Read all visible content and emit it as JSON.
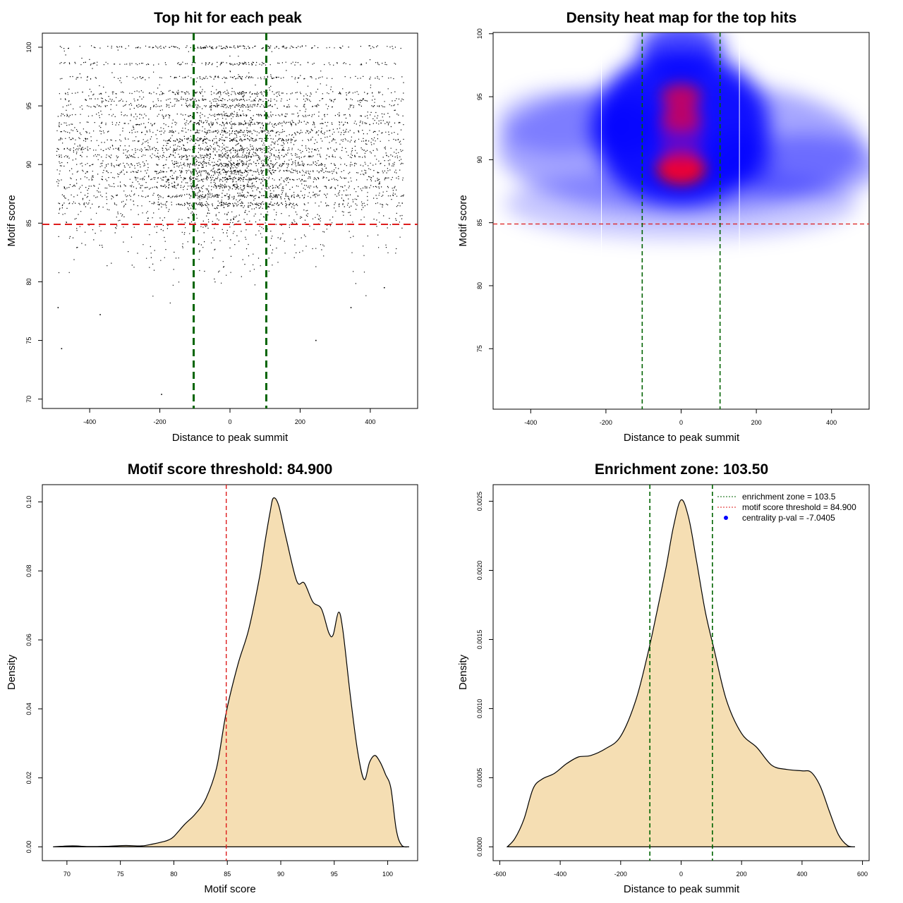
{
  "chart_data": [
    {
      "id": "scatter",
      "type": "scatter",
      "title": "Top hit for each peak",
      "xlabel": "Distance to peak summit",
      "ylabel": "Motif score",
      "xlim": [
        -535,
        535
      ],
      "ylim": [
        69.2,
        101.2
      ],
      "xticks": [
        -400,
        -200,
        0,
        200,
        400
      ],
      "yticks": [
        70,
        75,
        80,
        85,
        90,
        95,
        100
      ],
      "threshold": 84.9,
      "zone": [
        -103.5,
        103.5
      ],
      "points_note_series": [
        {
          "x": -480,
          "y": 74.3
        },
        {
          "x": -490,
          "y": 77.8
        },
        {
          "x": -370,
          "y": 77.2
        },
        {
          "x": -195,
          "y": 70.4
        },
        {
          "x": 245,
          "y": 75.0
        },
        {
          "x": 345,
          "y": 77.8
        },
        {
          "x": 440,
          "y": 79.5
        },
        {
          "x": 0,
          "y": 100
        },
        {
          "x": 0,
          "y": 98.6
        },
        {
          "x": 0,
          "y": 95
        },
        {
          "x": 0,
          "y": 92
        },
        {
          "x": 0,
          "y": 89
        }
      ],
      "colors": {
        "threshold": "#dd1c1c",
        "zone": "#006400",
        "points": "#000000"
      }
    },
    {
      "id": "heatmap",
      "type": "heatmap",
      "title": "Density heat map for the top hits",
      "xlabel": "Distance to peak summit",
      "ylabel": "Motif score",
      "xlim": [
        -500,
        500
      ],
      "ylim": [
        70.2,
        100.1
      ],
      "xticks": [
        -400,
        -200,
        0,
        200,
        400
      ],
      "yticks": [
        75,
        80,
        85,
        90,
        95,
        100
      ],
      "threshold": 84.9,
      "zone": [
        -103.5,
        103.5
      ],
      "hotspots": [
        {
          "x": 0,
          "y": 89.3,
          "level": "max"
        },
        {
          "x": 0,
          "y": 93.2,
          "level": "high"
        },
        {
          "x": 0,
          "y": 95.0,
          "level": "high"
        }
      ],
      "colors": {
        "low": "#ffffff",
        "mid": "#0000ff",
        "high": "#ff0000",
        "threshold": "#dd1c1c",
        "zone": "#006400"
      }
    },
    {
      "id": "scoredensity",
      "type": "area",
      "title": "Motif score threshold: 84.900",
      "xlabel": "Motif score",
      "ylabel": "Density",
      "xlim": [
        67.7,
        102.8
      ],
      "ylim": [
        -0.004,
        0.105
      ],
      "xticks": [
        70,
        75,
        80,
        85,
        90,
        95,
        100
      ],
      "yticks": [
        0.0,
        0.02,
        0.04,
        0.06,
        0.08,
        0.1
      ],
      "ytick_labels": [
        "0.00",
        "0.02",
        "0.04",
        "0.06",
        "0.08",
        "0.10"
      ],
      "threshold": 84.9,
      "x": [
        68.7,
        70.5,
        72,
        74,
        75.5,
        77,
        78,
        79,
        79.5,
        80,
        81,
        82,
        83,
        84,
        84.9,
        86,
        87,
        88,
        88.5,
        89,
        89.3,
        89.8,
        90.5,
        91.5,
        92.2,
        93,
        93.8,
        94.5,
        94.9,
        95.4,
        95.8,
        96.5,
        97.2,
        97.8,
        98.3,
        98.8,
        99.3,
        99.8,
        100.3,
        100.8,
        101.3,
        102.0
      ],
      "y": [
        0.0,
        0.0003,
        0.0001,
        0.0002,
        0.0004,
        0.0003,
        0.0008,
        0.0015,
        0.002,
        0.003,
        0.0065,
        0.0095,
        0.014,
        0.023,
        0.039,
        0.053,
        0.063,
        0.078,
        0.088,
        0.097,
        0.1011,
        0.099,
        0.0895,
        0.077,
        0.0765,
        0.071,
        0.069,
        0.062,
        0.0615,
        0.068,
        0.063,
        0.044,
        0.0275,
        0.0195,
        0.0245,
        0.0265,
        0.0245,
        0.021,
        0.017,
        0.005,
        0.0005,
        0.0
      ],
      "colors": {
        "fill": "#f5deb3",
        "threshold": "#dd1c1c"
      }
    },
    {
      "id": "distdensity",
      "type": "area",
      "title": "Enrichment zone: 103.50",
      "xlabel": "Distance to peak summit",
      "ylabel": "Density",
      "xlim": [
        -622,
        622
      ],
      "ylim": [
        -0.0001,
        0.00262
      ],
      "xticks": [
        -600,
        -400,
        -200,
        0,
        200,
        400,
        600
      ],
      "yticks": [
        0.0,
        0.0005,
        0.001,
        0.0015,
        0.002,
        0.0025
      ],
      "ytick_labels": [
        "0.0000",
        "0.0005",
        "0.0010",
        "0.0015",
        "0.0020",
        "0.0025"
      ],
      "zone": [
        -103.5,
        103.5
      ],
      "x": [
        -575,
        -550,
        -520,
        -490,
        -460,
        -420,
        -380,
        -340,
        -300,
        -250,
        -200,
        -150,
        -110,
        -80,
        -50,
        -25,
        0,
        25,
        50,
        80,
        110,
        150,
        200,
        250,
        300,
        350,
        400,
        430,
        460,
        490,
        520,
        550,
        575
      ],
      "y": [
        0.0,
        6e-05,
        0.0002,
        0.00042,
        0.00049,
        0.00053,
        0.0006,
        0.00065,
        0.00066,
        0.00071,
        0.0008,
        0.00106,
        0.0014,
        0.0017,
        0.00202,
        0.00232,
        0.00251,
        0.00238,
        0.00208,
        0.0017,
        0.00142,
        0.00106,
        0.00082,
        0.00072,
        0.00059,
        0.00056,
        0.00055,
        0.00054,
        0.00044,
        0.00026,
        9e-05,
        1e-05,
        0.0
      ],
      "legend": [
        "enrichment zone = 103.5",
        "motif score threshold = 84.900",
        "centrality p-val = -7.0405"
      ],
      "legend_position": "top-right",
      "colors": {
        "fill": "#f5deb3",
        "zone": "#006400",
        "threshold": "#dd1c1c",
        "pval": "#0000ff"
      }
    }
  ]
}
